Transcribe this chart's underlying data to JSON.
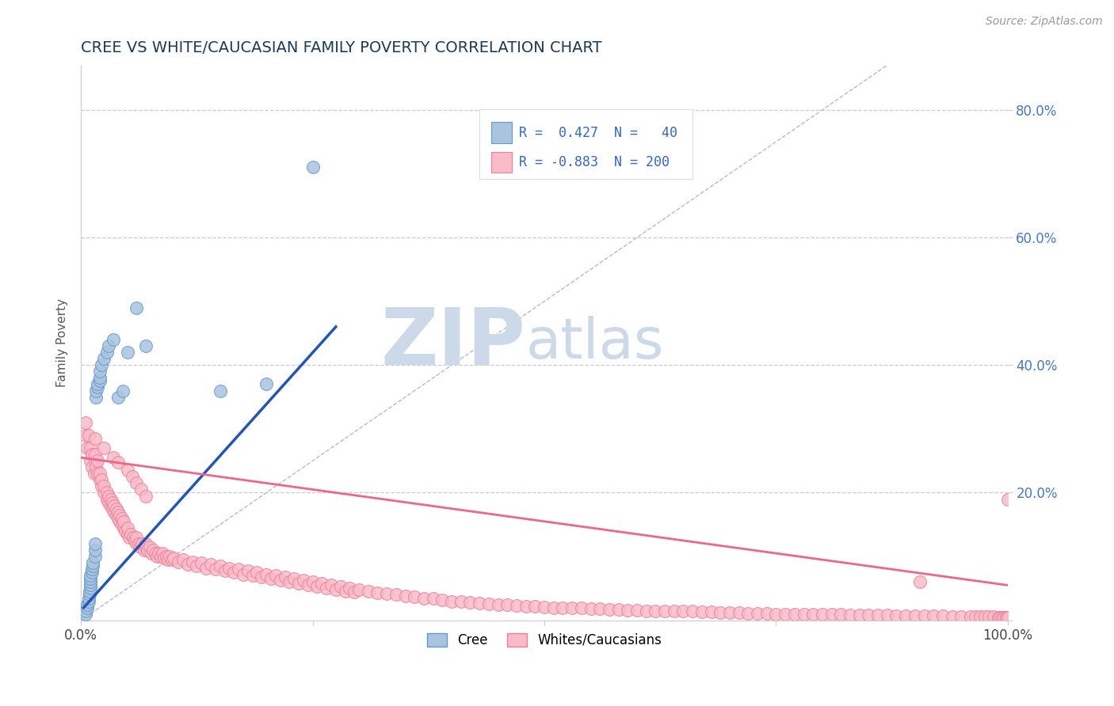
{
  "title": "CREE VS WHITE/CAUCASIAN FAMILY POVERTY CORRELATION CHART",
  "source_text": "Source: ZipAtlas.com",
  "ylabel": "Family Poverty",
  "xlim": [
    0,
    1
  ],
  "ylim": [
    0,
    0.87
  ],
  "xtick_positions": [
    0.0,
    0.25,
    0.5,
    0.75,
    1.0
  ],
  "xticklabels": [
    "0.0%",
    "",
    "",
    "",
    "100.0%"
  ],
  "ytick_positions": [
    0.0,
    0.2,
    0.4,
    0.6,
    0.8
  ],
  "ytick_labels_right": [
    "",
    "20.0%",
    "40.0%",
    "60.0%",
    "80.0%"
  ],
  "grid_color": "#cccccc",
  "background_color": "#ffffff",
  "title_color": "#1a3a5c",
  "title_fontsize": 14,
  "watermark_zip": "ZIP",
  "watermark_atlas": "atlas",
  "watermark_color": "#ccd9e8",
  "cree_dot_face": "#aac4e0",
  "cree_dot_edge": "#6699cc",
  "white_dot_face": "#f9bbc8",
  "white_dot_edge": "#f08098",
  "blue_line_color": "#2255bb",
  "pink_line_color": "#ee6688",
  "cree_R": 0.427,
  "cree_N": 40,
  "white_R": -0.883,
  "white_N": 200,
  "legend_R_color": "#3366cc",
  "legend_N_color": "#cc2244",
  "cree_scatter_x": [
    0.005,
    0.005,
    0.007,
    0.007,
    0.008,
    0.008,
    0.009,
    0.009,
    0.01,
    0.01,
    0.01,
    0.01,
    0.01,
    0.012,
    0.012,
    0.013,
    0.013,
    0.015,
    0.015,
    0.015,
    0.016,
    0.016,
    0.018,
    0.018,
    0.02,
    0.02,
    0.02,
    0.022,
    0.025,
    0.028,
    0.03,
    0.035,
    0.04,
    0.045,
    0.05,
    0.06,
    0.07,
    0.15,
    0.2,
    0.25
  ],
  "cree_scatter_y": [
    0.01,
    0.015,
    0.02,
    0.025,
    0.03,
    0.035,
    0.04,
    0.045,
    0.05,
    0.055,
    0.06,
    0.065,
    0.07,
    0.075,
    0.08,
    0.085,
    0.09,
    0.1,
    0.11,
    0.12,
    0.35,
    0.36,
    0.365,
    0.37,
    0.375,
    0.38,
    0.39,
    0.4,
    0.41,
    0.42,
    0.43,
    0.44,
    0.35,
    0.36,
    0.42,
    0.49,
    0.43,
    0.36,
    0.37,
    0.71
  ],
  "white_scatter_x": [
    0.005,
    0.005,
    0.007,
    0.008,
    0.01,
    0.01,
    0.012,
    0.012,
    0.014,
    0.015,
    0.015,
    0.016,
    0.018,
    0.018,
    0.02,
    0.02,
    0.022,
    0.022,
    0.025,
    0.025,
    0.028,
    0.028,
    0.03,
    0.03,
    0.032,
    0.032,
    0.034,
    0.034,
    0.036,
    0.036,
    0.038,
    0.038,
    0.04,
    0.04,
    0.042,
    0.042,
    0.044,
    0.044,
    0.046,
    0.046,
    0.048,
    0.05,
    0.05,
    0.052,
    0.054,
    0.056,
    0.058,
    0.06,
    0.06,
    0.062,
    0.064,
    0.066,
    0.068,
    0.07,
    0.07,
    0.072,
    0.074,
    0.076,
    0.078,
    0.08,
    0.082,
    0.084,
    0.086,
    0.088,
    0.09,
    0.092,
    0.094,
    0.096,
    0.098,
    0.1,
    0.105,
    0.11,
    0.115,
    0.12,
    0.125,
    0.13,
    0.135,
    0.14,
    0.145,
    0.15,
    0.155,
    0.16,
    0.165,
    0.17,
    0.175,
    0.18,
    0.185,
    0.19,
    0.195,
    0.2,
    0.205,
    0.21,
    0.215,
    0.22,
    0.225,
    0.23,
    0.235,
    0.24,
    0.245,
    0.25,
    0.255,
    0.26,
    0.265,
    0.27,
    0.275,
    0.28,
    0.285,
    0.29,
    0.295,
    0.3,
    0.31,
    0.32,
    0.33,
    0.34,
    0.35,
    0.36,
    0.37,
    0.38,
    0.39,
    0.4,
    0.41,
    0.42,
    0.43,
    0.44,
    0.45,
    0.46,
    0.47,
    0.48,
    0.49,
    0.5,
    0.51,
    0.52,
    0.53,
    0.54,
    0.55,
    0.56,
    0.57,
    0.58,
    0.59,
    0.6,
    0.61,
    0.62,
    0.63,
    0.64,
    0.65,
    0.66,
    0.67,
    0.68,
    0.69,
    0.7,
    0.71,
    0.72,
    0.73,
    0.74,
    0.75,
    0.76,
    0.77,
    0.78,
    0.79,
    0.8,
    0.81,
    0.82,
    0.83,
    0.84,
    0.85,
    0.86,
    0.87,
    0.88,
    0.89,
    0.9,
    0.91,
    0.92,
    0.93,
    0.94,
    0.95,
    0.96,
    0.965,
    0.97,
    0.975,
    0.98,
    0.985,
    0.99,
    0.992,
    0.994,
    0.996,
    0.998,
    0.998,
    1.0,
    1.0,
    1.0,
    0.905,
    0.015,
    0.025,
    0.035,
    0.04,
    0.05,
    0.055,
    0.06,
    0.065,
    0.07
  ],
  "white_scatter_y": [
    0.29,
    0.31,
    0.27,
    0.29,
    0.25,
    0.27,
    0.24,
    0.26,
    0.23,
    0.25,
    0.26,
    0.24,
    0.23,
    0.25,
    0.22,
    0.23,
    0.21,
    0.22,
    0.2,
    0.21,
    0.19,
    0.2,
    0.185,
    0.195,
    0.18,
    0.19,
    0.175,
    0.185,
    0.17,
    0.18,
    0.165,
    0.175,
    0.16,
    0.17,
    0.155,
    0.165,
    0.15,
    0.16,
    0.145,
    0.155,
    0.14,
    0.135,
    0.145,
    0.13,
    0.135,
    0.13,
    0.125,
    0.12,
    0.13,
    0.12,
    0.115,
    0.12,
    0.11,
    0.115,
    0.12,
    0.11,
    0.115,
    0.105,
    0.11,
    0.105,
    0.1,
    0.105,
    0.1,
    0.105,
    0.098,
    0.1,
    0.095,
    0.1,
    0.095,
    0.098,
    0.092,
    0.095,
    0.088,
    0.092,
    0.085,
    0.09,
    0.082,
    0.088,
    0.08,
    0.085,
    0.078,
    0.082,
    0.075,
    0.08,
    0.072,
    0.078,
    0.07,
    0.075,
    0.068,
    0.072,
    0.065,
    0.07,
    0.063,
    0.068,
    0.06,
    0.065,
    0.058,
    0.063,
    0.055,
    0.06,
    0.053,
    0.058,
    0.05,
    0.055,
    0.048,
    0.053,
    0.046,
    0.05,
    0.044,
    0.048,
    0.045,
    0.043,
    0.042,
    0.04,
    0.038,
    0.037,
    0.035,
    0.034,
    0.032,
    0.03,
    0.029,
    0.028,
    0.027,
    0.026,
    0.025,
    0.024,
    0.023,
    0.022,
    0.022,
    0.021,
    0.02,
    0.02,
    0.019,
    0.019,
    0.018,
    0.018,
    0.017,
    0.017,
    0.016,
    0.016,
    0.015,
    0.015,
    0.015,
    0.014,
    0.014,
    0.014,
    0.013,
    0.013,
    0.012,
    0.012,
    0.012,
    0.011,
    0.011,
    0.011,
    0.01,
    0.01,
    0.01,
    0.01,
    0.009,
    0.009,
    0.009,
    0.009,
    0.008,
    0.008,
    0.008,
    0.008,
    0.008,
    0.007,
    0.007,
    0.007,
    0.007,
    0.007,
    0.007,
    0.006,
    0.006,
    0.006,
    0.006,
    0.006,
    0.006,
    0.006,
    0.006,
    0.005,
    0.005,
    0.005,
    0.005,
    0.005,
    0.005,
    0.005,
    0.005,
    0.19,
    0.06,
    0.285,
    0.27,
    0.255,
    0.248,
    0.235,
    0.225,
    0.215,
    0.205,
    0.195
  ],
  "blue_line_x": [
    0.003,
    0.275
  ],
  "blue_line_y": [
    0.02,
    0.46
  ],
  "pink_line_x": [
    0.0,
    1.0
  ],
  "pink_line_y": [
    0.255,
    0.055
  ]
}
